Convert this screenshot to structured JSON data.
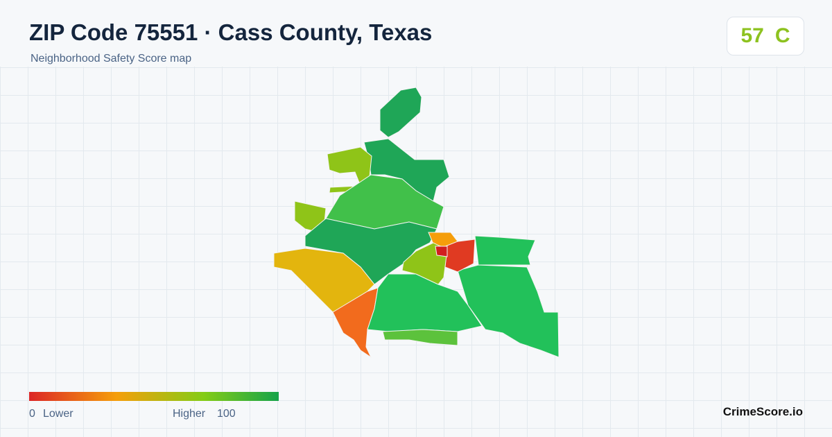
{
  "header": {
    "title": "ZIP Code 75551 · Cass County, Texas",
    "subtitle": "Neighborhood Safety Score map"
  },
  "score": {
    "value": "57",
    "grade": "C"
  },
  "legend": {
    "min": "0",
    "min_label": "Lower",
    "max_label": "Higher",
    "max": "100"
  },
  "brand": "CrimeScore.io"
}
